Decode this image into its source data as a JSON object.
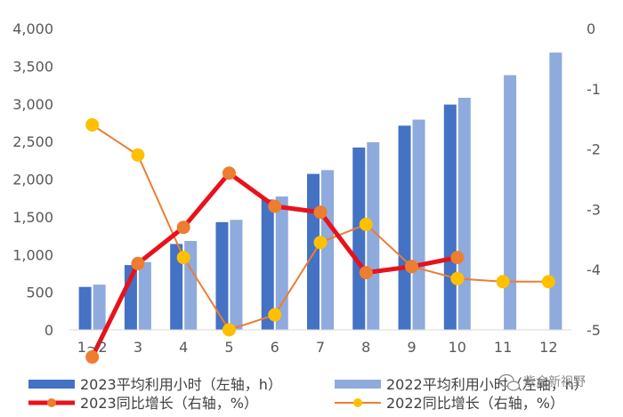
{
  "chart_data": {
    "type": "bar",
    "categories": [
      "1~2",
      "3",
      "4",
      "5",
      "6",
      "7",
      "8",
      "9",
      "10",
      "11",
      "12"
    ],
    "y_left": {
      "ticks": [
        "4,000",
        "3,500",
        "3,000",
        "2,500",
        "2,000",
        "1,500",
        "1,000",
        "500",
        "0"
      ],
      "range": [
        0,
        4000
      ]
    },
    "y_right": {
      "ticks": [
        "0",
        "-1",
        "-2",
        "-3",
        "-4",
        "-5"
      ],
      "range": [
        -5,
        0
      ]
    },
    "series": [
      {
        "name": "2023平均利用小时（左轴，h）",
        "kind": "bar",
        "axis": "left",
        "color": "#4472C4",
        "values": [
          570,
          860,
          1140,
          1430,
          1730,
          2070,
          2420,
          2710,
          2990,
          null,
          null
        ]
      },
      {
        "name": "2022平均利用小时（左轴，h）",
        "kind": "bar",
        "axis": "left",
        "color": "#8FAADC",
        "values": [
          600,
          900,
          1180,
          1460,
          1770,
          2120,
          2490,
          2790,
          3080,
          3380,
          3680
        ]
      },
      {
        "name": "2023同比增长（右轴，%）",
        "kind": "line",
        "axis": "right",
        "color": "#E8121C",
        "marker": "#ED7D31",
        "values": [
          -5.45,
          -3.9,
          -3.3,
          -2.4,
          -2.95,
          -3.05,
          -4.05,
          -3.95,
          -3.8,
          null,
          null
        ]
      },
      {
        "name": "2022同比增长（右轴，%）",
        "kind": "line",
        "axis": "right",
        "color": "#ED7D31",
        "marker": "#FFC000",
        "values": [
          -1.6,
          -2.1,
          -3.8,
          -5.0,
          -4.75,
          -3.55,
          -3.25,
          -3.95,
          -4.15,
          -4.2,
          -4.2
        ]
      }
    ],
    "legend_position": "bottom",
    "grid": false
  },
  "watermark": {
    "text": "紫金新视野"
  }
}
